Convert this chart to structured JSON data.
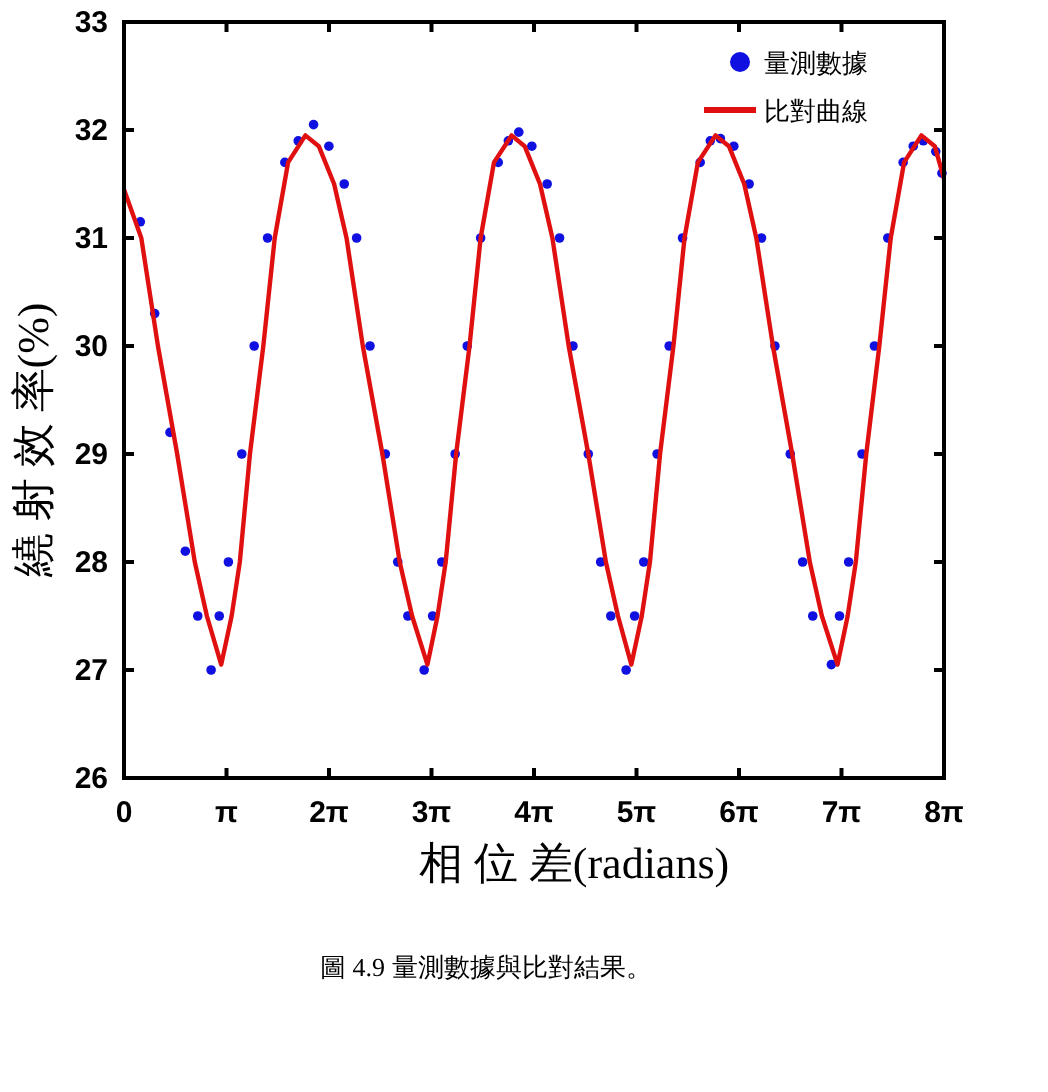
{
  "chart_data": {
    "type": "scatter",
    "xlabel": "相 位 差(radians)",
    "ylabel": "繞 射 效 率(%)",
    "annotations": [
      "圖 4.9 量測數據與比對結果。"
    ],
    "xlim": [
      0,
      25.1327
    ],
    "ylim": [
      26,
      33
    ],
    "xticks": [
      0,
      {
        "value": 3.1416,
        "label": "π"
      },
      {
        "value": 6.2832,
        "label": "2π"
      },
      {
        "value": 9.4248,
        "label": "3π"
      },
      {
        "value": 12.5664,
        "label": "4π"
      },
      {
        "value": 15.708,
        "label": "5π"
      },
      {
        "value": 18.8496,
        "label": "6π"
      },
      {
        "value": 21.9911,
        "label": "7π"
      },
      {
        "value": 25.1327,
        "label": "8π"
      }
    ],
    "yticks": [
      26,
      27,
      28,
      29,
      30,
      31,
      32,
      33
    ],
    "grid": false,
    "legend": "top right",
    "series": [
      {
        "name": "量測數據",
        "marker": "circle",
        "color": "#1010e0",
        "x": [
          0.5,
          0.94,
          1.41,
          1.88,
          2.26,
          2.67,
          2.92,
          3.2,
          3.61,
          3.99,
          4.4,
          4.93,
          5.34,
          5.81,
          6.28,
          6.75,
          7.13,
          7.54,
          8.01,
          8.39,
          8.7,
          9.2,
          9.46,
          9.74,
          10.15,
          10.52,
          10.93,
          11.47,
          11.78,
          12.1,
          12.5,
          12.97,
          13.35,
          13.76,
          14.23,
          14.61,
          14.92,
          15.39,
          15.65,
          15.93,
          16.34,
          16.71,
          17.12,
          17.66,
          17.97,
          18.28,
          18.69,
          19.16,
          19.54,
          19.95,
          20.42,
          20.8,
          21.11,
          21.68,
          21.93,
          22.21,
          22.62,
          23.0,
          23.41,
          23.88,
          24.19,
          24.5,
          24.88,
          25.07
        ],
        "values": [
          31.15,
          30.3,
          29.2,
          28.1,
          27.5,
          27.0,
          27.5,
          28,
          29,
          30,
          31,
          31.7,
          31.9,
          32.05,
          31.85,
          31.5,
          31,
          30,
          29,
          28,
          27.5,
          27.0,
          27.5,
          28,
          29,
          30,
          31,
          31.7,
          31.9,
          31.98,
          31.85,
          31.5,
          31,
          30,
          29,
          28,
          27.5,
          27.0,
          27.5,
          28,
          29,
          30,
          31,
          31.7,
          31.9,
          31.92,
          31.85,
          31.5,
          31,
          30,
          29,
          28,
          27.5,
          27.05,
          27.5,
          28,
          29,
          30,
          31,
          31.7,
          31.85,
          31.9,
          31.8,
          31.6
        ]
      },
      {
        "name": "比對曲線",
        "type": "line",
        "color": "#e01010",
        "x": [
          0,
          0.53,
          1.04,
          1.63,
          2.17,
          2.54,
          2.98,
          3.3,
          3.55,
          3.86,
          4.27,
          4.62,
          5.03,
          5.56,
          5.97,
          6.44,
          6.82,
          7.32,
          7.92,
          8.45,
          8.83,
          9.3,
          9.61,
          9.86,
          10.18,
          10.59,
          10.93,
          11.34,
          11.88,
          12.28,
          12.75,
          13.13,
          13.63,
          14.23,
          14.77,
          15.14,
          15.55,
          15.87,
          16.12,
          16.43,
          16.84,
          17.18,
          17.59,
          18.13,
          18.54,
          19.01,
          19.38,
          19.89,
          20.48,
          21.02,
          21.39,
          21.87,
          22.18,
          22.43,
          22.75,
          23.15,
          23.5,
          23.91,
          24.44,
          24.85,
          25.13
        ],
        "values": [
          31.45,
          31.0,
          30.0,
          29.0,
          28.0,
          27.5,
          27.05,
          27.5,
          28,
          29,
          30,
          31,
          31.7,
          31.95,
          31.85,
          31.5,
          31,
          30,
          29,
          28,
          27.5,
          27.05,
          27.5,
          28,
          29,
          30,
          31,
          31.7,
          31.95,
          31.85,
          31.5,
          31,
          30,
          29,
          28,
          27.5,
          27.05,
          27.5,
          28,
          29,
          30,
          31,
          31.7,
          31.95,
          31.85,
          31.5,
          31,
          30,
          29,
          28,
          27.5,
          27.05,
          27.5,
          28,
          29,
          30,
          31,
          31.7,
          31.95,
          31.85,
          31.55
        ]
      }
    ]
  }
}
